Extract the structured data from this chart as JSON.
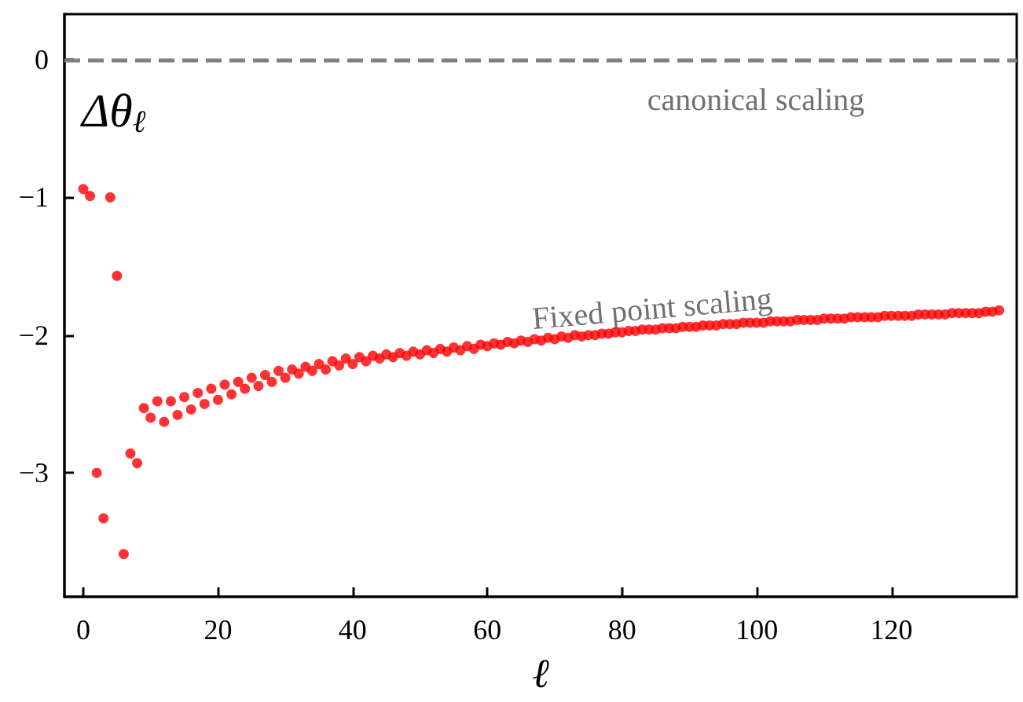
{
  "chart_data": {
    "type": "scatter",
    "xlabel": "ℓ",
    "ylabel": "Δθ$_{ℓ}$",
    "xlim": [
      -2.8,
      138.6
    ],
    "ylim": [
      -3.9,
      0.33
    ],
    "xticks": [
      0,
      20,
      40,
      60,
      80,
      100,
      120
    ],
    "yticks": [
      {
        "value": -3,
        "label": "−3"
      },
      {
        "value": -2,
        "label": "−2"
      },
      {
        "value": -1,
        "label": "−1"
      },
      0
    ],
    "grid": false,
    "marker": "circle",
    "ref_lines": [
      {
        "axis": "y",
        "value": 0,
        "color": "#808080",
        "line_style": "dashed"
      }
    ],
    "annotations": [
      "canonical scaling",
      "Fixed point scaling"
    ],
    "series": [
      {
        "color": "#ff0000",
        "x": [
          0,
          1,
          2,
          3,
          4,
          5,
          6,
          7,
          8,
          9,
          10,
          11,
          12,
          13,
          14,
          15,
          16,
          17,
          18,
          19,
          20,
          21,
          22,
          23,
          24,
          25,
          26,
          27,
          28,
          29,
          30,
          31,
          32,
          33,
          34,
          35,
          36,
          37,
          38,
          39,
          40,
          41,
          42,
          43,
          44,
          45,
          46,
          47,
          48,
          49,
          50,
          51,
          52,
          53,
          54,
          55,
          56,
          57,
          58,
          59,
          60,
          61,
          62,
          63,
          64,
          65,
          66,
          67,
          68,
          69,
          70,
          71,
          72,
          73,
          74,
          75,
          76,
          77,
          78,
          79,
          80,
          81,
          82,
          83,
          84,
          85,
          86,
          87,
          88,
          89,
          90,
          91,
          92,
          93,
          94,
          95,
          96,
          97,
          98,
          99,
          100,
          101,
          102,
          103,
          104,
          105,
          106,
          107,
          108,
          109,
          110,
          111,
          112,
          113,
          114,
          115,
          116,
          117,
          118,
          119,
          120,
          121,
          122,
          123,
          124,
          125,
          126,
          127,
          128,
          129,
          130,
          131,
          132,
          133,
          134,
          135,
          136
        ],
        "values": [
          -0.94,
          -0.99,
          -3.0,
          -3.33,
          -1.0,
          -1.57,
          -3.59,
          -2.86,
          -2.93,
          -2.53,
          -2.6,
          -2.48,
          -2.63,
          -2.48,
          -2.58,
          -2.45,
          -2.54,
          -2.42,
          -2.5,
          -2.39,
          -2.47,
          -2.36,
          -2.43,
          -2.34,
          -2.39,
          -2.31,
          -2.37,
          -2.29,
          -2.34,
          -2.26,
          -2.31,
          -2.25,
          -2.28,
          -2.23,
          -2.26,
          -2.21,
          -2.25,
          -2.19,
          -2.22,
          -2.17,
          -2.21,
          -2.16,
          -2.19,
          -2.15,
          -2.17,
          -2.14,
          -2.16,
          -2.13,
          -2.15,
          -2.12,
          -2.14,
          -2.11,
          -2.13,
          -2.1,
          -2.12,
          -2.09,
          -2.11,
          -2.08,
          -2.1,
          -2.07,
          -2.08,
          -2.06,
          -2.07,
          -2.05,
          -2.06,
          -2.04,
          -2.05,
          -2.03,
          -2.04,
          -2.02,
          -2.03,
          -2.01,
          -2.02,
          -2.0,
          -2.01,
          -2.0,
          -2.0,
          -1.99,
          -1.99,
          -1.98,
          -1.98,
          -1.97,
          -1.97,
          -1.96,
          -1.96,
          -1.96,
          -1.95,
          -1.95,
          -1.95,
          -1.94,
          -1.94,
          -1.94,
          -1.93,
          -1.93,
          -1.93,
          -1.92,
          -1.92,
          -1.92,
          -1.91,
          -1.91,
          -1.91,
          -1.91,
          -1.9,
          -1.9,
          -1.9,
          -1.9,
          -1.89,
          -1.89,
          -1.89,
          -1.89,
          -1.88,
          -1.88,
          -1.88,
          -1.88,
          -1.87,
          -1.87,
          -1.87,
          -1.87,
          -1.87,
          -1.86,
          -1.86,
          -1.86,
          -1.86,
          -1.86,
          -1.85,
          -1.85,
          -1.85,
          -1.85,
          -1.85,
          -1.84,
          -1.84,
          -1.84,
          -1.84,
          -1.84,
          -1.83,
          -1.83,
          -1.82
        ]
      }
    ]
  }
}
